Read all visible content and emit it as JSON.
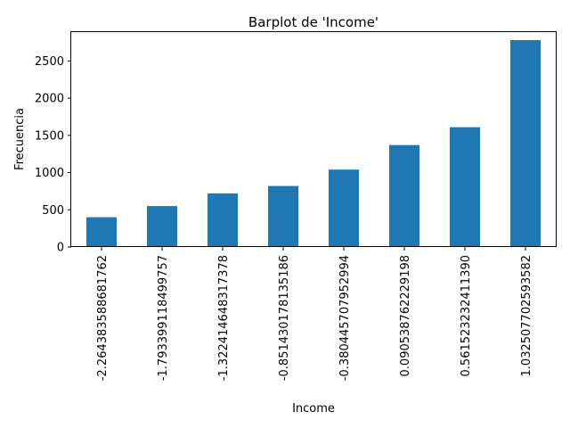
{
  "chart_data": {
    "type": "bar",
    "title": "Barplot de 'Income'",
    "xlabel": "Income",
    "ylabel": "Frecuencia",
    "categories": [
      "-2.264383588681762",
      "-1.793399118499757",
      "-1.322414648317378",
      "-0.851430178135186",
      "-0.380445707952994",
      "0.090538762229198",
      "0.561523232411390",
      "1.032507702593582"
    ],
    "values": [
      400,
      550,
      720,
      820,
      1040,
      1370,
      1610,
      2780
    ],
    "yticks": [
      0,
      500,
      1000,
      1500,
      2000,
      2500
    ],
    "ylim": [
      0,
      2900
    ],
    "bar_color": "#1f77b4",
    "grid": false
  }
}
